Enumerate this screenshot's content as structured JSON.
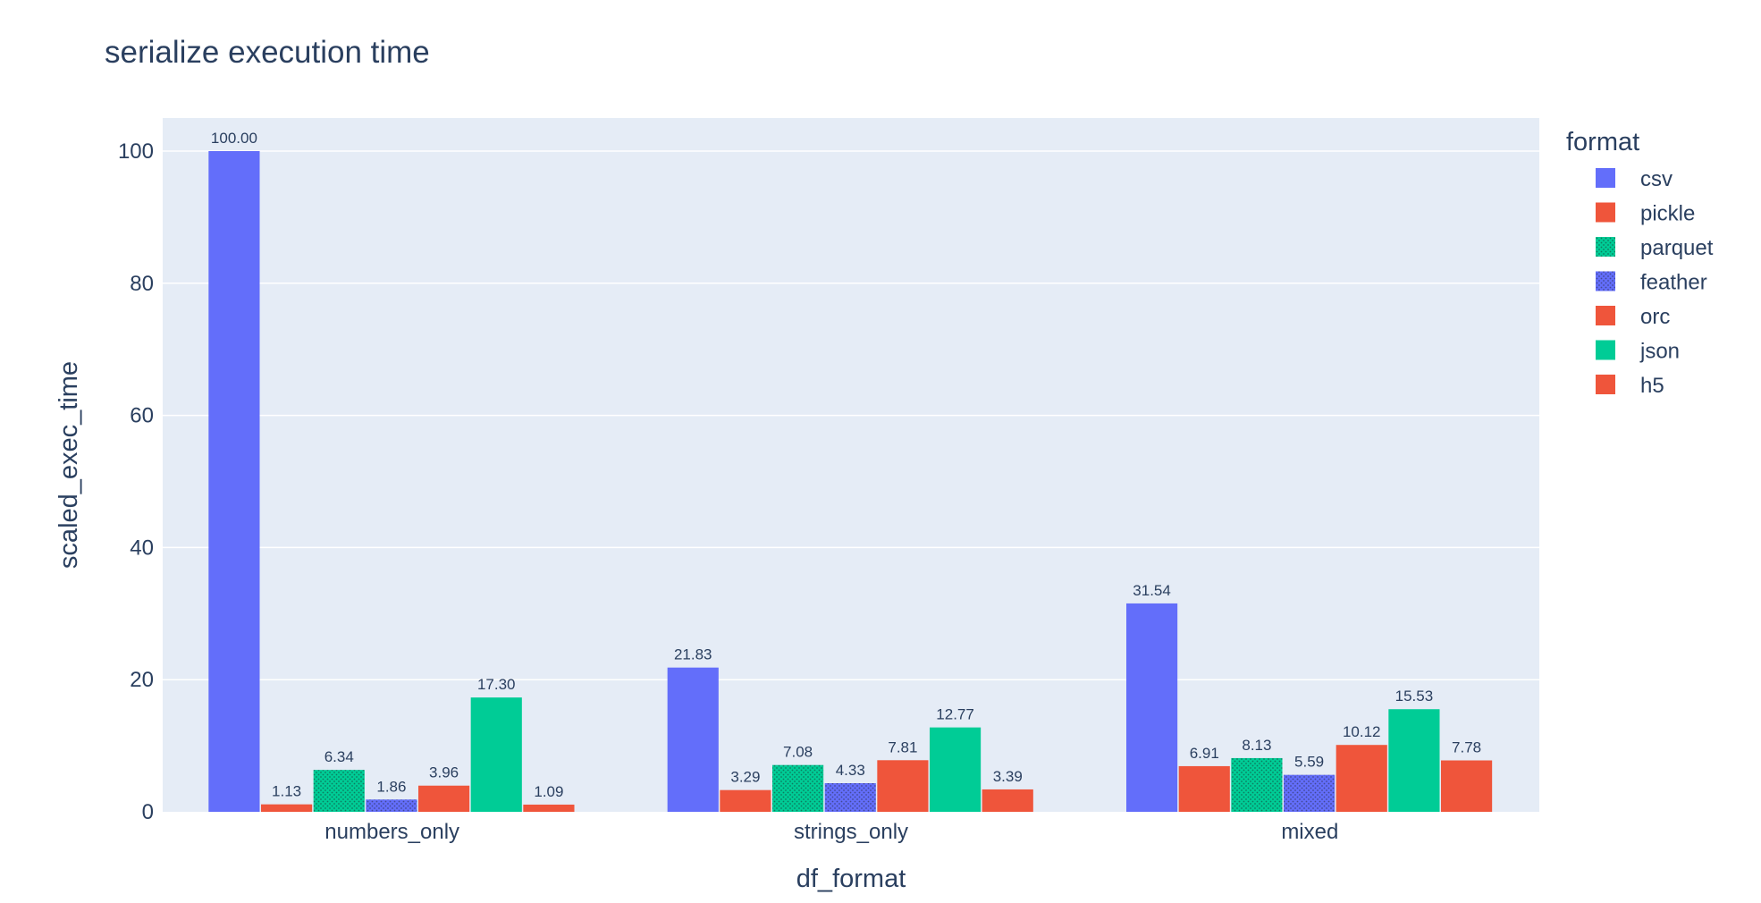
{
  "chart_data": {
    "type": "bar",
    "title": "serialize execution time",
    "xlabel": "df_format",
    "ylabel": "scaled_exec_time",
    "ylim": [
      0,
      105
    ],
    "yticks": [
      0,
      20,
      40,
      60,
      80,
      100
    ],
    "grid": true,
    "legend": {
      "title": "format",
      "placement": "right"
    },
    "categories": [
      "numbers_only",
      "strings_only",
      "mixed"
    ],
    "series": [
      {
        "name": "csv",
        "color": "#636efa",
        "pattern": "solid",
        "values": [
          100.0,
          21.83,
          31.54
        ],
        "labels": [
          "100.00",
          "21.83",
          "31.54"
        ]
      },
      {
        "name": "pickle",
        "color": "#ef553b",
        "pattern": "solid",
        "values": [
          1.13,
          3.29,
          6.91
        ],
        "labels": [
          "1.13",
          "3.29",
          "6.91"
        ]
      },
      {
        "name": "parquet",
        "color": "#00cc96",
        "pattern": "dots",
        "values": [
          6.34,
          7.08,
          8.13
        ],
        "labels": [
          "6.34",
          "7.08",
          "8.13"
        ]
      },
      {
        "name": "feather",
        "color": "#636efa",
        "pattern": "dots",
        "values": [
          1.86,
          4.33,
          5.59
        ],
        "labels": [
          "1.86",
          "4.33",
          "5.59"
        ]
      },
      {
        "name": "orc",
        "color": "#ef553b",
        "pattern": "solid",
        "values": [
          3.96,
          7.81,
          10.12
        ],
        "labels": [
          "3.96",
          "7.81",
          "10.12"
        ]
      },
      {
        "name": "json",
        "color": "#00cc96",
        "pattern": "solid",
        "values": [
          17.3,
          12.77,
          15.53
        ],
        "labels": [
          "17.30",
          "12.77",
          "15.53"
        ]
      },
      {
        "name": "h5",
        "color": "#ef553b",
        "pattern": "solid",
        "values": [
          1.09,
          3.39,
          7.78
        ],
        "labels": [
          "1.09",
          "3.39",
          "7.78"
        ]
      }
    ]
  }
}
